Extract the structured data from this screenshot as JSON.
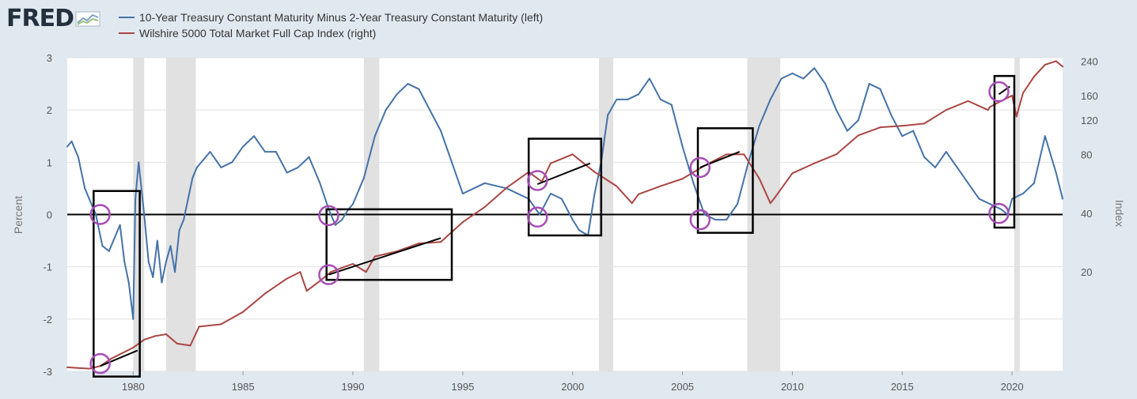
{
  "brand": {
    "name": "FRED",
    "icon": "chart-line-icon"
  },
  "colors": {
    "blue": "#4572a7",
    "red": "#aa4643",
    "recession": "#e1e1e1",
    "annotation_purple": "#a64db5",
    "annotation_black": "#000000"
  },
  "chart_data": {
    "type": "line",
    "title": "",
    "xlabel": "",
    "ylabel": "Percent",
    "ylabel_right": "Index",
    "xlim": [
      1977.0,
      2022.3
    ],
    "ylim": [
      -3,
      3
    ],
    "ylim_right_log": [
      6.2,
      250
    ],
    "x_ticks": [
      1980,
      1985,
      1990,
      1995,
      2000,
      2005,
      2010,
      2015,
      2020
    ],
    "x_tick_labels": [
      "1980",
      "1985",
      "1990",
      "1995",
      "2000",
      "2005",
      "2010",
      "2015",
      "2020"
    ],
    "y_ticks": [
      -3,
      -2,
      -1,
      0,
      1,
      2,
      3
    ],
    "y_tick_labels": [
      "-3",
      "-2",
      "-1",
      "0",
      "1",
      "2",
      "3"
    ],
    "y_right_ticks": [
      20,
      40,
      80,
      120,
      160,
      240
    ],
    "y_right_tick_labels": [
      "20",
      "40",
      "80",
      "120",
      "160",
      "240"
    ],
    "recessions": [
      [
        1980.0,
        1980.5
      ],
      [
        1981.5,
        1982.85
      ],
      [
        1990.5,
        1991.2
      ],
      [
        2001.2,
        2001.85
      ],
      [
        2007.95,
        2009.45
      ],
      [
        2020.1,
        2020.35
      ]
    ],
    "series": [
      {
        "name": "10-Year Treasury Constant Maturity Minus 2-Year Treasury Constant Maturity (left)",
        "axis": "left",
        "color": "#4572a7",
        "x": [
          1977.0,
          1977.2,
          1977.5,
          1977.8,
          1978.0,
          1978.3,
          1978.6,
          1978.9,
          1979.1,
          1979.4,
          1979.6,
          1979.8,
          1980.0,
          1980.1,
          1980.25,
          1980.5,
          1980.7,
          1980.9,
          1981.1,
          1981.3,
          1981.5,
          1981.7,
          1981.9,
          1982.1,
          1982.3,
          1982.5,
          1982.7,
          1982.9,
          1983.5,
          1984.0,
          1984.5,
          1985.0,
          1985.5,
          1986.0,
          1986.5,
          1987.0,
          1987.5,
          1988.0,
          1988.5,
          1988.9,
          1989.2,
          1989.5,
          1989.8,
          1990.0,
          1990.5,
          1991.0,
          1991.5,
          1992.0,
          1992.5,
          1993.0,
          1993.5,
          1994.0,
          1994.5,
          1995.0,
          1995.5,
          1996.0,
          1997.0,
          1998.0,
          1998.5,
          1999.0,
          1999.5,
          2000.0,
          2000.3,
          2000.7,
          2001.0,
          2001.3,
          2001.6,
          2002.0,
          2002.5,
          2003.0,
          2003.5,
          2004.0,
          2004.5,
          2005.0,
          2005.5,
          2006.0,
          2006.5,
          2007.0,
          2007.5,
          2008.0,
          2008.5,
          2009.0,
          2009.5,
          2010.0,
          2010.5,
          2011.0,
          2011.5,
          2012.0,
          2012.5,
          2013.0,
          2013.5,
          2014.0,
          2014.5,
          2015.0,
          2015.5,
          2016.0,
          2016.5,
          2017.0,
          2017.5,
          2018.0,
          2018.5,
          2019.0,
          2019.5,
          2019.8,
          2020.0,
          2020.5,
          2021.0,
          2021.5,
          2022.0,
          2022.3
        ],
        "values": [
          1.3,
          1.4,
          1.1,
          0.5,
          0.3,
          0.0,
          -0.6,
          -0.7,
          -0.5,
          -0.2,
          -0.9,
          -1.3,
          -2.0,
          0.3,
          1.0,
          0.0,
          -0.9,
          -1.2,
          -0.5,
          -1.3,
          -0.9,
          -0.6,
          -1.1,
          -0.3,
          -0.1,
          0.3,
          0.7,
          0.9,
          1.2,
          0.9,
          1.0,
          1.3,
          1.5,
          1.2,
          1.2,
          0.8,
          0.9,
          1.1,
          0.6,
          0.1,
          -0.2,
          -0.1,
          0.1,
          0.2,
          0.7,
          1.5,
          2.0,
          2.3,
          2.5,
          2.4,
          2.0,
          1.6,
          1.0,
          0.4,
          0.5,
          0.6,
          0.5,
          0.3,
          0.0,
          0.4,
          0.3,
          -0.1,
          -0.3,
          -0.4,
          0.4,
          1.0,
          1.9,
          2.2,
          2.2,
          2.3,
          2.6,
          2.2,
          2.1,
          1.3,
          0.6,
          0.0,
          -0.1,
          -0.1,
          0.2,
          1.0,
          1.7,
          2.2,
          2.6,
          2.7,
          2.6,
          2.8,
          2.5,
          2.0,
          1.6,
          1.8,
          2.5,
          2.4,
          1.9,
          1.5,
          1.6,
          1.1,
          0.9,
          1.2,
          0.9,
          0.6,
          0.3,
          0.2,
          0.1,
          0.0,
          0.3,
          0.4,
          0.6,
          1.5,
          0.8,
          0.3
        ]
      },
      {
        "name": "Wilshire 5000 Total Market Full Cap Index (right)",
        "axis": "right",
        "color": "#aa4643",
        "x": [
          1977.0,
          1978.0,
          1978.5,
          1979.0,
          1980.0,
          1980.5,
          1981.0,
          1981.5,
          1982.0,
          1982.6,
          1983.0,
          1984.0,
          1985.0,
          1986.0,
          1987.0,
          1987.6,
          1987.9,
          1988.5,
          1989.0,
          1989.5,
          1990.0,
          1990.6,
          1991.0,
          1992.0,
          1993.0,
          1994.0,
          1995.0,
          1996.0,
          1997.0,
          1998.0,
          1998.6,
          1999.0,
          2000.0,
          2000.5,
          2001.0,
          2002.0,
          2002.7,
          2003.0,
          2004.0,
          2005.0,
          2006.0,
          2007.0,
          2007.8,
          2008.5,
          2009.0,
          2009.2,
          2010.0,
          2011.0,
          2012.0,
          2013.0,
          2014.0,
          2015.0,
          2016.0,
          2017.0,
          2018.0,
          2018.9,
          2019.0,
          2019.5,
          2020.0,
          2020.2,
          2020.5,
          2021.0,
          2021.5,
          2022.0,
          2022.3
        ],
        "values": [
          6.5,
          6.4,
          6.6,
          7.2,
          8.2,
          9.0,
          9.4,
          9.6,
          8.6,
          8.4,
          10.5,
          10.8,
          12.5,
          15.5,
          18.5,
          20.0,
          16.0,
          18.0,
          20.0,
          21.0,
          22.0,
          20.0,
          24.0,
          25.5,
          28.0,
          28.5,
          36.0,
          43.0,
          54.0,
          65.0,
          58.0,
          72.0,
          80.0,
          72.0,
          65.0,
          55.0,
          45.0,
          50.0,
          55.0,
          60.0,
          70.0,
          80.0,
          80.0,
          60.0,
          45.0,
          48.0,
          64.0,
          72.0,
          80.0,
          100.0,
          110.0,
          112.0,
          115.0,
          135.0,
          150.0,
          135.0,
          140.0,
          150.0,
          160.0,
          125.0,
          165.0,
          200.0,
          230.0,
          240.0,
          225.0
        ]
      }
    ],
    "annotations": {
      "boxes": [
        [
          1978.2,
          0.45,
          1980.3,
          -3.1
        ],
        [
          1988.8,
          0.1,
          1994.5,
          -1.25
        ],
        [
          1998.0,
          1.45,
          2001.3,
          -0.4
        ],
        [
          2005.7,
          1.65,
          2008.2,
          -0.35
        ],
        [
          2019.2,
          2.65,
          2020.1,
          -0.25
        ]
      ],
      "circles": [
        [
          1978.5,
          0.0
        ],
        [
          1978.5,
          -2.85
        ],
        [
          1988.9,
          -0.02
        ],
        [
          1988.9,
          -1.15
        ],
        [
          1998.4,
          0.65
        ],
        [
          1998.4,
          -0.05
        ],
        [
          2005.8,
          0.9
        ],
        [
          2005.8,
          -0.1
        ],
        [
          2019.4,
          2.35
        ],
        [
          2019.4,
          0.02
        ]
      ],
      "lines": [
        [
          1978.5,
          -2.9,
          1980.2,
          -2.6
        ],
        [
          1988.9,
          -1.15,
          1994.0,
          -0.45
        ],
        [
          1998.4,
          0.58,
          2000.8,
          0.98
        ],
        [
          2005.8,
          0.9,
          2007.6,
          1.2
        ],
        [
          2019.4,
          2.3,
          2019.9,
          2.45
        ]
      ]
    }
  }
}
